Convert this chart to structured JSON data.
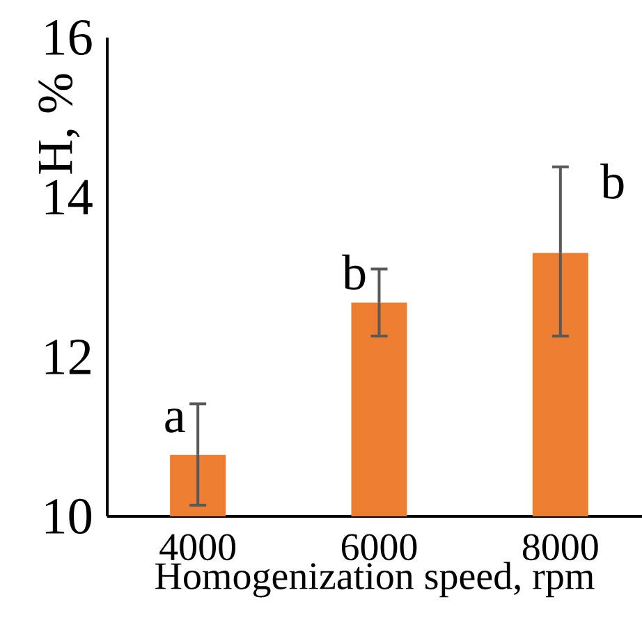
{
  "chart_data": {
    "type": "bar",
    "xlabel": "Homogenization speed, rpm",
    "ylabel": "H, %",
    "categories": [
      "4000",
      "6000",
      "8000"
    ],
    "values": [
      10.77,
      12.68,
      13.3
    ],
    "errors": [
      [
        10.14,
        11.41
      ],
      [
        12.26,
        13.1
      ],
      [
        12.26,
        14.38
      ]
    ],
    "color": "#ed7d31",
    "ylim": [
      10,
      16
    ],
    "yticks": [
      10,
      12,
      14,
      16
    ],
    "grid": false,
    "annotations": [
      {
        "text": "a",
        "x": "4000",
        "y": 11.2
      },
      {
        "text": "b",
        "x": "6000",
        "y": 13.06
      },
      {
        "text": "b",
        "x": "8000",
        "y": 14.2
      }
    ]
  }
}
